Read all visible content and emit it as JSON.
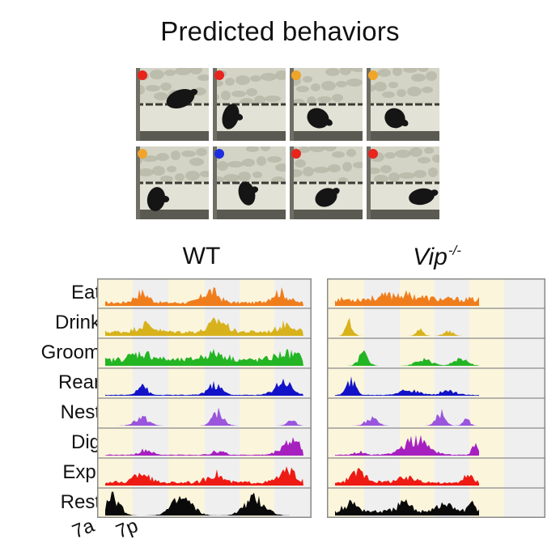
{
  "title": "Predicted behaviors",
  "frame_dots": [
    {
      "color": "#e8241c"
    },
    {
      "color": "#e8241c"
    },
    {
      "color": "#f0a52a"
    },
    {
      "color": "#f0a52a"
    },
    {
      "color": "#f0a52a"
    },
    {
      "color": "#1f2de0"
    },
    {
      "color": "#e8241c"
    },
    {
      "color": "#e8241c"
    }
  ],
  "panels": [
    {
      "title": "WT",
      "italic": false,
      "superscript": ""
    },
    {
      "title": "Vip",
      "italic": true,
      "superscript": "-/-"
    }
  ],
  "behaviors": [
    {
      "label": "Eat",
      "color": "#f07d1c"
    },
    {
      "label": "Drink",
      "color": "#d8b21c"
    },
    {
      "label": "Groom",
      "color": "#23b523"
    },
    {
      "label": "Rear",
      "color": "#1212c8"
    },
    {
      "label": "Nest",
      "color": "#9a55dc"
    },
    {
      "label": "Dig",
      "color": "#a620c0"
    },
    {
      "label": "Expl",
      "color": "#ee1a14"
    },
    {
      "label": "Rest",
      "color": "#0a0a0a"
    }
  ],
  "ticks": [
    "7a",
    "7p"
  ],
  "shading": {
    "light_phase": "#fbf5dc",
    "dark_phase": "#efefef"
  }
}
